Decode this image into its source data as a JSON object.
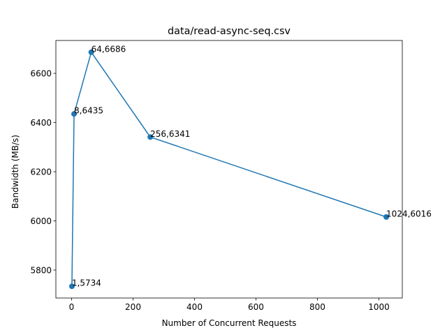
{
  "chart_data": {
    "type": "line",
    "title": "data/read-async-seq.csv",
    "xlabel": "Number of Concurrent Requests",
    "ylabel": "Bandwidth (MB/s)",
    "xlim": [
      -51.15,
      1076.15
    ],
    "ylim": [
      5686.4,
      6733.6
    ],
    "xticks": [
      0,
      200,
      400,
      600,
      800,
      1000
    ],
    "yticks": [
      5800,
      6000,
      6200,
      6400,
      6600
    ],
    "grid": false,
    "legend": "none",
    "series": [
      {
        "color": "#1f77b4",
        "marker": "circle",
        "x": [
          1,
          8,
          64,
          256,
          1024
        ],
        "y": [
          5734,
          6435,
          6686,
          6341,
          6016
        ],
        "point_labels": [
          "1,5734",
          "8,6435",
          "64,6686",
          "256,6341",
          "1024,6016"
        ]
      }
    ]
  }
}
